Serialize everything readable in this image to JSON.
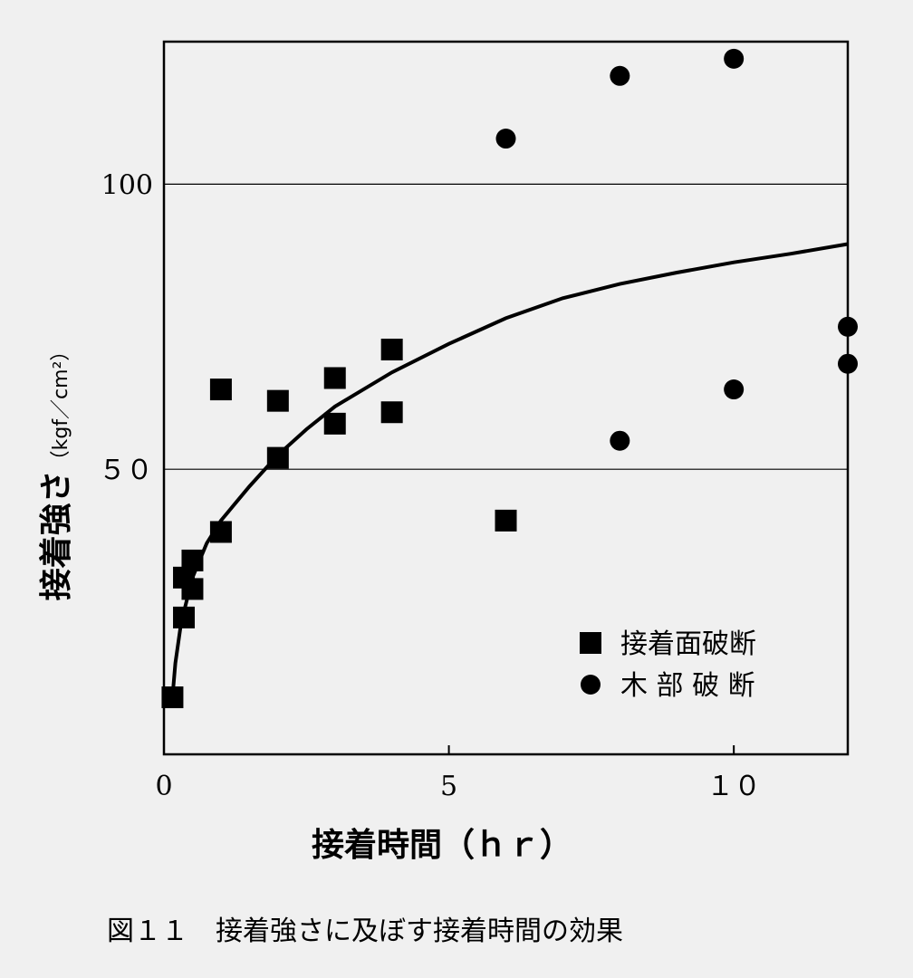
{
  "chart_data": {
    "type": "scatter",
    "xlabel": "接着時間（ｈｒ）",
    "ylabel_main": "接着強さ",
    "ylabel_unit": "（kgf／cm²）",
    "xlim": [
      0,
      12
    ],
    "ylim": [
      0,
      125
    ],
    "x_ticks": [
      {
        "value": 0,
        "label": "0"
      },
      {
        "value": 5,
        "label": "5"
      },
      {
        "value": 10,
        "label": "１０"
      }
    ],
    "y_ticks": [
      {
        "value": 50,
        "label": "５０"
      },
      {
        "value": 100,
        "label": "100"
      }
    ],
    "gridlines_y": [
      50,
      100
    ],
    "legend_position": "bottom-right",
    "series": [
      {
        "name": "接着面破断",
        "marker": "square",
        "points": [
          [
            0.15,
            10
          ],
          [
            0.35,
            24
          ],
          [
            0.35,
            31
          ],
          [
            0.5,
            29
          ],
          [
            0.5,
            34
          ],
          [
            1,
            39
          ],
          [
            1,
            64
          ],
          [
            2,
            52
          ],
          [
            2,
            62
          ],
          [
            3,
            58
          ],
          [
            3,
            66
          ],
          [
            4,
            60
          ],
          [
            4,
            71
          ],
          [
            6,
            41
          ]
        ]
      },
      {
        "name": "木 部 破 断",
        "marker": "circle",
        "points": [
          [
            6,
            108
          ],
          [
            8,
            119
          ],
          [
            10,
            122
          ],
          [
            8,
            55
          ],
          [
            10,
            64
          ],
          [
            12,
            75
          ],
          [
            12,
            68.5
          ]
        ]
      }
    ],
    "fit_curve": [
      [
        0.15,
        10
      ],
      [
        0.2,
        16
      ],
      [
        0.3,
        23
      ],
      [
        0.5,
        31
      ],
      [
        0.75,
        37
      ],
      [
        1,
        41
      ],
      [
        1.5,
        47
      ],
      [
        2,
        52.5
      ],
      [
        2.5,
        57
      ],
      [
        3,
        61
      ],
      [
        4,
        67
      ],
      [
        5,
        72
      ],
      [
        6,
        76.5
      ],
      [
        7,
        80
      ],
      [
        8,
        82.5
      ],
      [
        9,
        84.5
      ],
      [
        10,
        86.3
      ],
      [
        11,
        87.8
      ],
      [
        12,
        89.5
      ]
    ],
    "caption": "図１１　接着強さに及ぼす接着時間の効果"
  }
}
